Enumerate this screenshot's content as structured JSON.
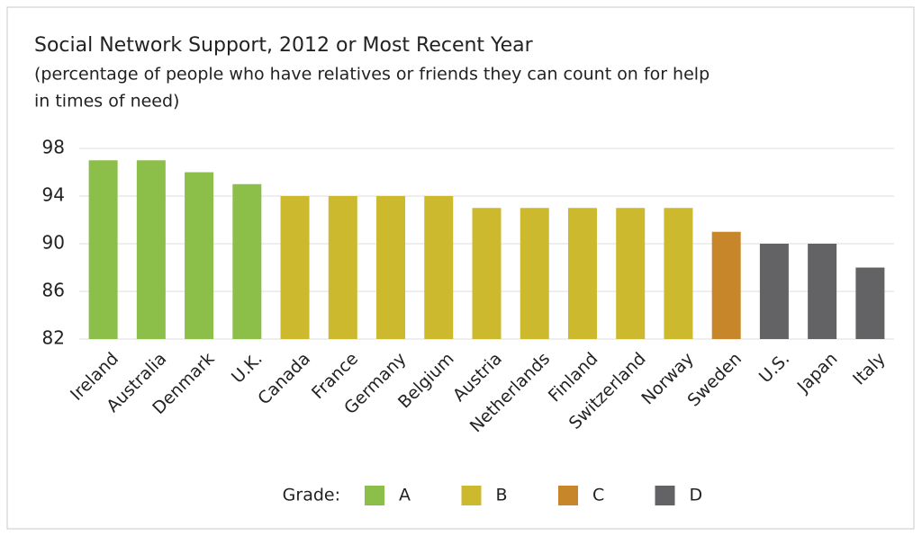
{
  "chart_data": {
    "type": "bar",
    "title": "Social Network Support, 2012 or Most Recent Year",
    "subtitle": [
      "(percentage of people who have relatives or friends they can count on for help",
      "in times of need)"
    ],
    "categories": [
      "Ireland",
      "Australia",
      "Denmark",
      "U.K.",
      "Canada",
      "France",
      "Germany",
      "Belgium",
      "Austria",
      "Netherlands",
      "Finland",
      "Switzerland",
      "Norway",
      "Sweden",
      "U.S.",
      "Japan",
      "Italy"
    ],
    "legend_title": "Grade:",
    "series": [
      {
        "name": "A",
        "color": "#8bbf4a",
        "values": [
          97,
          97,
          96,
          95,
          null,
          null,
          null,
          null,
          null,
          null,
          null,
          null,
          null,
          null,
          null,
          null,
          null
        ]
      },
      {
        "name": "B",
        "color": "#cdb92e",
        "values": [
          null,
          null,
          null,
          null,
          94,
          94,
          94,
          94,
          93,
          93,
          93,
          93,
          93,
          null,
          null,
          null,
          null
        ]
      },
      {
        "name": "C",
        "color": "#c8862a",
        "values": [
          null,
          null,
          null,
          null,
          null,
          null,
          null,
          null,
          null,
          null,
          null,
          null,
          null,
          91,
          null,
          null,
          null
        ]
      },
      {
        "name": "D",
        "color": "#636366",
        "values": [
          null,
          null,
          null,
          null,
          null,
          null,
          null,
          null,
          null,
          null,
          null,
          null,
          null,
          null,
          90,
          90,
          88
        ]
      }
    ],
    "ylim": [
      82,
      98
    ],
    "yticks": [
      82,
      86,
      90,
      94,
      98
    ],
    "grid": true
  }
}
